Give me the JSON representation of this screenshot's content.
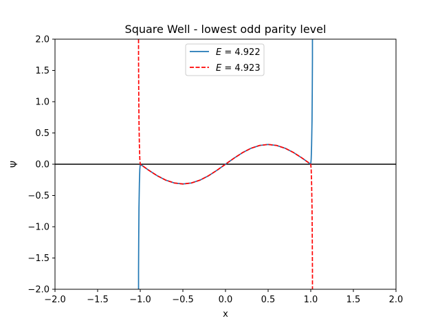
{
  "chart_data": {
    "type": "line",
    "title": "Square Well - lowest odd parity level",
    "xlabel": "x",
    "ylabel": "Ψ",
    "xlim": [
      -2.0,
      2.0
    ],
    "ylim": [
      -2.0,
      2.0
    ],
    "xticks": [
      -2.0,
      -1.5,
      -1.0,
      -0.5,
      0.0,
      0.5,
      1.0,
      1.5,
      2.0
    ],
    "xtick_labels": [
      "−2.0",
      "−1.5",
      "−1.0",
      "−0.5",
      "0.0",
      "0.5",
      "1.0",
      "1.5",
      "2.0"
    ],
    "yticks": [
      -2.0,
      -1.5,
      -1.0,
      -0.5,
      0.0,
      0.5,
      1.0,
      1.5,
      2.0
    ],
    "ytick_labels": [
      "−2.0",
      "−1.5",
      "−1.0",
      "−0.5",
      "0.0",
      "0.5",
      "1.0",
      "1.5",
      "2.0"
    ],
    "grid": false,
    "legend_position": "upper-center",
    "reference_line": {
      "y": 0.0,
      "color": "#000000"
    },
    "series": [
      {
        "name": "E = 4.922",
        "legend_var": "E",
        "legend_value": "4.922",
        "color": "#1f77b4",
        "style": "solid",
        "x": [
          -1.02,
          -1.02,
          -1.018,
          -1.015,
          -1.01,
          -1.005,
          -1.0,
          -0.9,
          -0.8,
          -0.7,
          -0.6,
          -0.5,
          -0.4,
          -0.3,
          -0.2,
          -0.1,
          0.0,
          0.1,
          0.2,
          0.3,
          0.4,
          0.5,
          0.6,
          0.7,
          0.8,
          0.9,
          1.0,
          1.005,
          1.01,
          1.015,
          1.018,
          1.02,
          1.02
        ],
        "y": [
          -2.0,
          -1.7,
          -1.2,
          -0.7,
          -0.3,
          -0.08,
          0.0,
          -0.097,
          -0.185,
          -0.255,
          -0.3,
          -0.316,
          -0.3,
          -0.255,
          -0.185,
          -0.097,
          0.0,
          0.097,
          0.185,
          0.255,
          0.3,
          0.316,
          0.3,
          0.255,
          0.185,
          0.097,
          0.0,
          0.08,
          0.3,
          0.7,
          1.2,
          1.7,
          2.0
        ]
      },
      {
        "name": "E = 4.923",
        "legend_var": "E",
        "legend_value": "4.923",
        "color": "#ff0000",
        "style": "dashed",
        "x": [
          -1.02,
          -1.02,
          -1.018,
          -1.015,
          -1.01,
          -1.005,
          -1.0,
          -0.9,
          -0.8,
          -0.7,
          -0.6,
          -0.5,
          -0.4,
          -0.3,
          -0.2,
          -0.1,
          0.0,
          0.1,
          0.2,
          0.3,
          0.4,
          0.5,
          0.6,
          0.7,
          0.8,
          0.9,
          1.0,
          1.005,
          1.01,
          1.015,
          1.018,
          1.02,
          1.02
        ],
        "y": [
          2.0,
          1.7,
          1.2,
          0.7,
          0.3,
          0.08,
          0.0,
          -0.097,
          -0.185,
          -0.255,
          -0.3,
          -0.316,
          -0.3,
          -0.255,
          -0.185,
          -0.097,
          0.0,
          0.097,
          0.185,
          0.255,
          0.3,
          0.316,
          0.3,
          0.255,
          0.185,
          0.097,
          0.0,
          -0.08,
          -0.3,
          -0.7,
          -1.2,
          -1.7,
          -2.0
        ]
      }
    ]
  }
}
